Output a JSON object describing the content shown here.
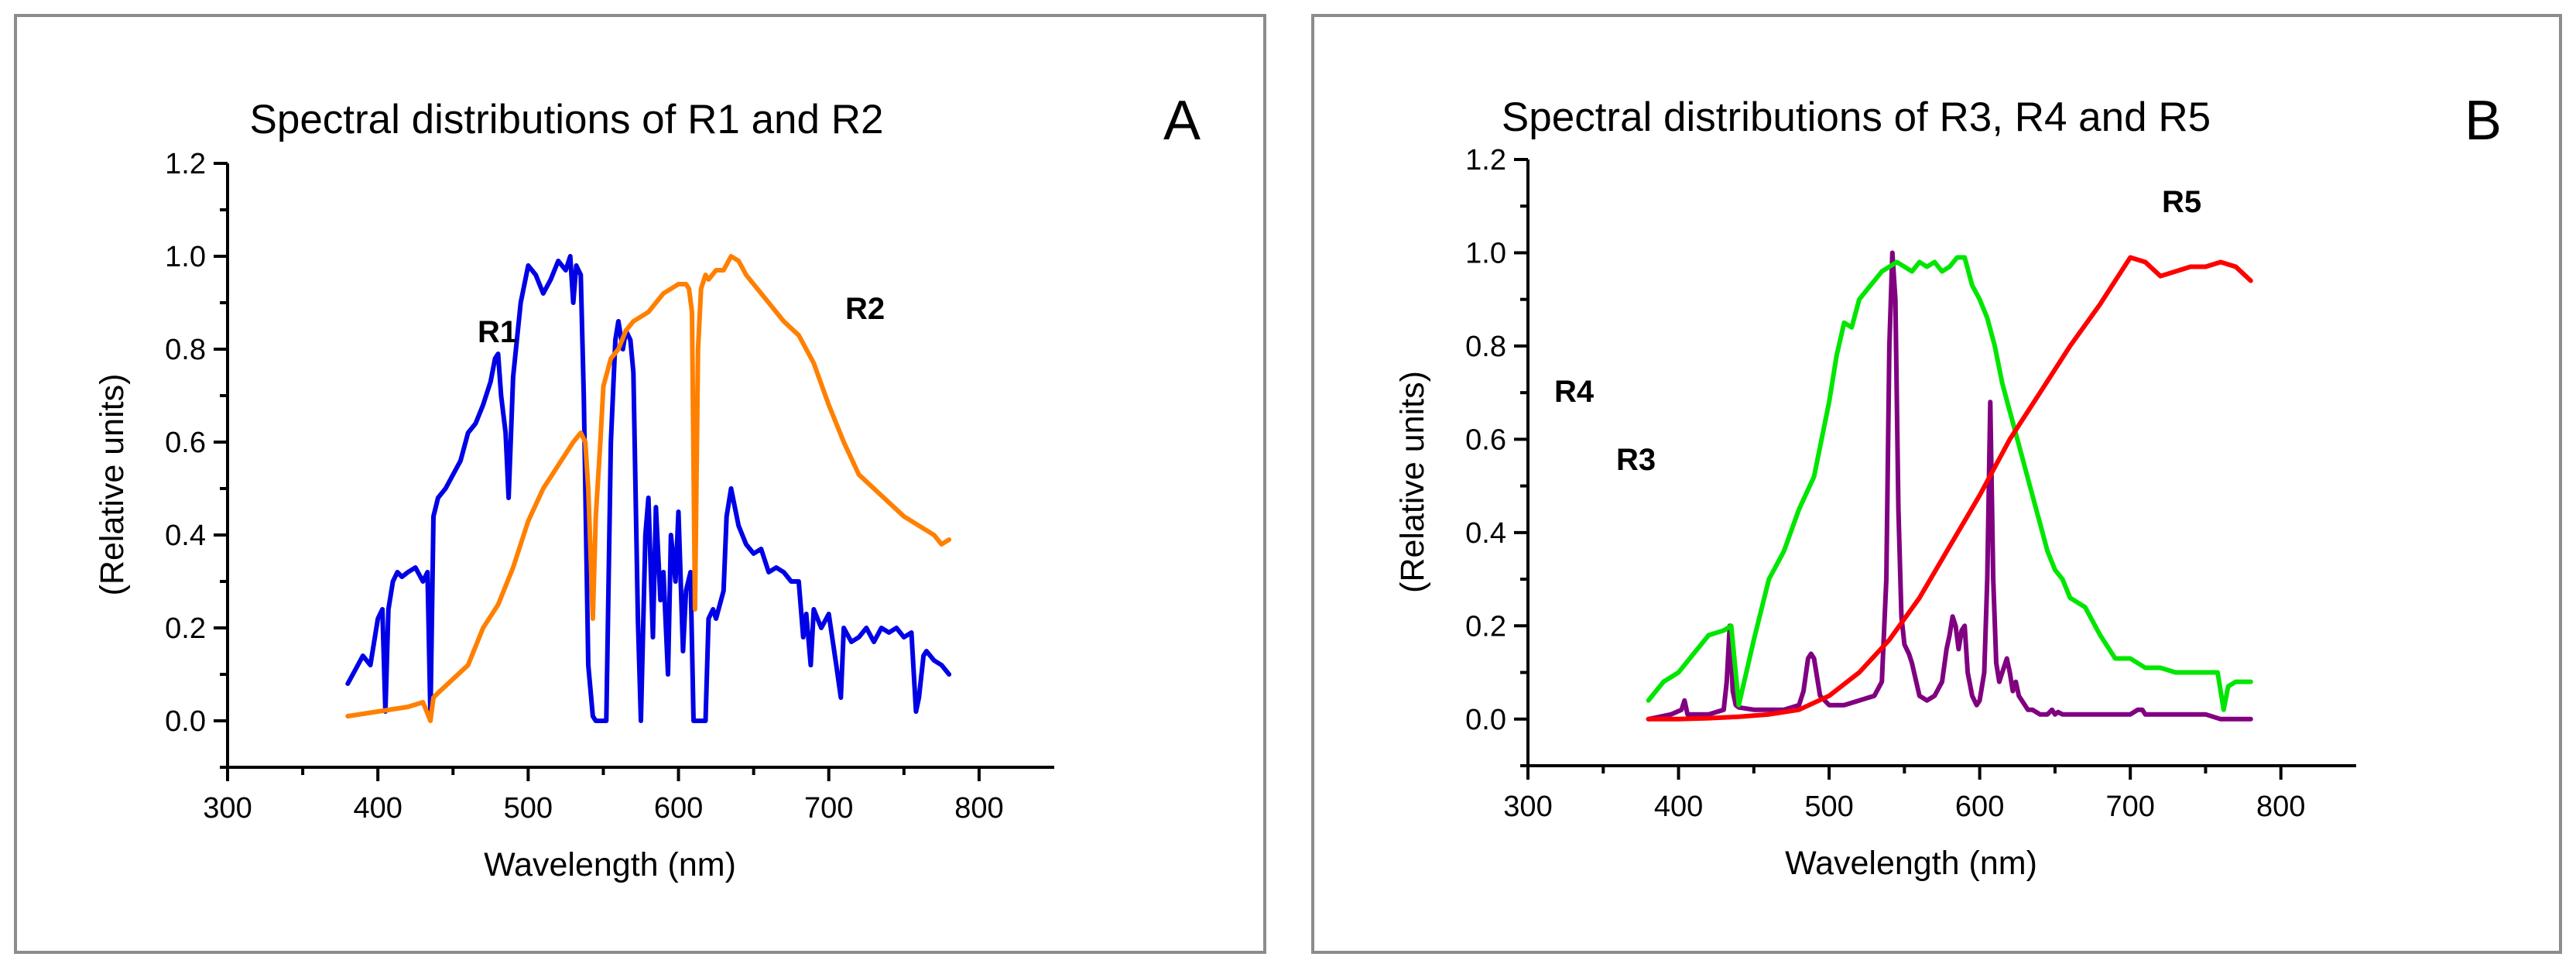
{
  "chart_data": [
    {
      "type": "line",
      "panel_letter": "A",
      "title": "Spectral distributions of R1 and R2",
      "xlabel": "Wavelength (nm)",
      "ylabel": "(Relative units)",
      "xlim": [
        300,
        850
      ],
      "ylim": [
        -0.1,
        1.2
      ],
      "xticks": [
        300,
        400,
        500,
        600,
        700,
        800
      ],
      "yticks": [
        0.0,
        0.2,
        0.4,
        0.6,
        0.8,
        1.0,
        1.2
      ],
      "grid": false,
      "series": [
        {
          "name": "R1",
          "color": "#0000e6",
          "x": [
            380,
            385,
            390,
            395,
            400,
            403,
            405,
            407,
            410,
            413,
            416,
            420,
            425,
            430,
            433,
            435,
            437,
            440,
            445,
            450,
            455,
            460,
            465,
            470,
            475,
            478,
            480,
            482,
            485,
            487,
            490,
            495,
            500,
            505,
            510,
            515,
            520,
            525,
            528,
            530,
            532,
            535,
            537,
            540,
            543,
            545,
            548,
            550,
            552,
            555,
            558,
            560,
            563,
            565,
            568,
            570,
            573,
            575,
            578,
            580,
            583,
            585,
            588,
            590,
            593,
            595,
            598,
            600,
            603,
            605,
            608,
            610,
            613,
            615,
            618,
            620,
            623,
            625,
            630,
            632,
            635,
            640,
            645,
            650,
            655,
            660,
            665,
            670,
            675,
            680,
            683,
            685,
            688,
            690,
            695,
            700,
            705,
            708,
            710,
            715,
            720,
            725,
            730,
            735,
            740,
            745,
            750,
            755,
            758,
            760,
            763,
            765,
            770,
            775,
            780
          ],
          "y": [
            0.08,
            0.11,
            0.14,
            0.12,
            0.22,
            0.24,
            0.02,
            0.24,
            0.3,
            0.32,
            0.31,
            0.32,
            0.33,
            0.3,
            0.32,
            0.01,
            0.44,
            0.48,
            0.5,
            0.53,
            0.56,
            0.62,
            0.64,
            0.68,
            0.73,
            0.78,
            0.79,
            0.7,
            0.62,
            0.48,
            0.74,
            0.9,
            0.98,
            0.96,
            0.92,
            0.95,
            0.99,
            0.97,
            1.0,
            0.9,
            0.98,
            0.96,
            0.7,
            0.12,
            0.01,
            0.0,
            0.0,
            0.0,
            0.0,
            0.6,
            0.82,
            0.86,
            0.8,
            0.84,
            0.82,
            0.75,
            0.22,
            0.0,
            0.4,
            0.48,
            0.18,
            0.46,
            0.26,
            0.32,
            0.1,
            0.4,
            0.3,
            0.45,
            0.15,
            0.28,
            0.32,
            0.0,
            0.0,
            0.0,
            0.0,
            0.22,
            0.24,
            0.22,
            0.28,
            0.44,
            0.5,
            0.42,
            0.38,
            0.36,
            0.37,
            0.32,
            0.33,
            0.32,
            0.3,
            0.3,
            0.18,
            0.23,
            0.12,
            0.24,
            0.2,
            0.23,
            0.12,
            0.05,
            0.2,
            0.17,
            0.18,
            0.2,
            0.17,
            0.2,
            0.19,
            0.2,
            0.18,
            0.19,
            0.02,
            0.05,
            0.14,
            0.15,
            0.13,
            0.12,
            0.1
          ]
        },
        {
          "name": "R2",
          "color": "#ff8000",
          "x": [
            380,
            390,
            400,
            410,
            420,
            430,
            435,
            437,
            440,
            450,
            460,
            470,
            480,
            490,
            500,
            510,
            520,
            530,
            535,
            538,
            540,
            543,
            545,
            548,
            550,
            555,
            560,
            565,
            570,
            575,
            580,
            585,
            590,
            595,
            600,
            605,
            607,
            609,
            611,
            613,
            615,
            618,
            620,
            625,
            630,
            635,
            640,
            645,
            650,
            660,
            670,
            680,
            690,
            700,
            710,
            720,
            730,
            740,
            750,
            760,
            770,
            775,
            780
          ],
          "y": [
            0.01,
            0.015,
            0.02,
            0.025,
            0.03,
            0.04,
            0.0,
            0.05,
            0.06,
            0.09,
            0.12,
            0.2,
            0.25,
            0.33,
            0.43,
            0.5,
            0.55,
            0.6,
            0.62,
            0.6,
            0.5,
            0.22,
            0.44,
            0.6,
            0.72,
            0.78,
            0.8,
            0.84,
            0.86,
            0.87,
            0.88,
            0.9,
            0.92,
            0.93,
            0.94,
            0.94,
            0.93,
            0.88,
            0.24,
            0.8,
            0.93,
            0.96,
            0.95,
            0.97,
            0.97,
            1.0,
            0.99,
            0.96,
            0.94,
            0.9,
            0.86,
            0.83,
            0.77,
            0.68,
            0.6,
            0.53,
            0.5,
            0.47,
            0.44,
            0.42,
            0.4,
            0.38,
            0.39
          ]
        }
      ],
      "annotations": [
        "R1",
        "R2"
      ]
    },
    {
      "type": "line",
      "panel_letter": "B",
      "title": "Spectral distributions of R3, R4 and R5",
      "xlabel": "Wavelength (nm)",
      "ylabel": "(Relative units)",
      "xlim": [
        300,
        850
      ],
      "ylim": [
        -0.1,
        1.2
      ],
      "xticks": [
        300,
        400,
        500,
        600,
        700,
        800
      ],
      "yticks": [
        0.0,
        0.2,
        0.4,
        0.6,
        0.8,
        1.0,
        1.2
      ],
      "grid": false,
      "series": [
        {
          "name": "R3",
          "color": "#800080",
          "x": [
            380,
            395,
            402,
            404,
            406,
            410,
            420,
            430,
            432,
            434,
            436,
            438,
            440,
            450,
            460,
            470,
            480,
            483,
            486,
            488,
            490,
            492,
            494,
            497,
            500,
            510,
            520,
            530,
            535,
            538,
            540,
            542,
            544,
            546,
            548,
            550,
            553,
            555,
            560,
            565,
            570,
            575,
            578,
            580,
            582,
            584,
            586,
            588,
            590,
            592,
            595,
            598,
            600,
            603,
            605,
            607,
            609,
            611,
            613,
            615,
            618,
            620,
            622,
            624,
            626,
            628,
            630,
            632,
            635,
            640,
            645,
            648,
            650,
            652,
            655,
            660,
            670,
            680,
            690,
            700,
            705,
            708,
            710,
            713,
            715,
            720,
            730,
            740,
            750,
            760,
            770,
            780
          ],
          "y": [
            0.0,
            0.01,
            0.02,
            0.04,
            0.01,
            0.01,
            0.01,
            0.02,
            0.08,
            0.2,
            0.06,
            0.03,
            0.025,
            0.02,
            0.02,
            0.02,
            0.03,
            0.06,
            0.13,
            0.14,
            0.13,
            0.09,
            0.05,
            0.04,
            0.03,
            0.03,
            0.04,
            0.05,
            0.08,
            0.3,
            0.8,
            1.0,
            0.9,
            0.45,
            0.22,
            0.16,
            0.14,
            0.12,
            0.05,
            0.04,
            0.05,
            0.08,
            0.15,
            0.18,
            0.22,
            0.2,
            0.15,
            0.19,
            0.2,
            0.1,
            0.05,
            0.03,
            0.04,
            0.1,
            0.3,
            0.68,
            0.3,
            0.12,
            0.08,
            0.1,
            0.13,
            0.1,
            0.06,
            0.08,
            0.05,
            0.04,
            0.03,
            0.02,
            0.02,
            0.01,
            0.01,
            0.02,
            0.01,
            0.015,
            0.01,
            0.01,
            0.01,
            0.01,
            0.01,
            0.01,
            0.02,
            0.02,
            0.01,
            0.01,
            0.01,
            0.01,
            0.01,
            0.01,
            0.01,
            0.0,
            0.0,
            0.0
          ]
        },
        {
          "name": "R4",
          "color": "#00e600",
          "x": [
            380,
            390,
            400,
            410,
            420,
            430,
            435,
            440,
            450,
            460,
            470,
            480,
            490,
            500,
            505,
            510,
            515,
            520,
            525,
            530,
            535,
            540,
            545,
            550,
            555,
            560,
            565,
            570,
            575,
            580,
            585,
            590,
            595,
            600,
            605,
            610,
            615,
            620,
            625,
            630,
            635,
            640,
            645,
            650,
            655,
            660,
            670,
            680,
            690,
            700,
            710,
            720,
            730,
            740,
            750,
            758,
            762,
            765,
            770,
            780
          ],
          "y": [
            0.04,
            0.08,
            0.1,
            0.14,
            0.18,
            0.19,
            0.2,
            0.03,
            0.17,
            0.3,
            0.36,
            0.45,
            0.52,
            0.68,
            0.78,
            0.85,
            0.84,
            0.9,
            0.92,
            0.94,
            0.96,
            0.97,
            0.98,
            0.97,
            0.96,
            0.98,
            0.97,
            0.98,
            0.96,
            0.97,
            0.99,
            0.99,
            0.93,
            0.9,
            0.86,
            0.8,
            0.72,
            0.66,
            0.6,
            0.54,
            0.48,
            0.42,
            0.36,
            0.32,
            0.3,
            0.26,
            0.24,
            0.18,
            0.13,
            0.13,
            0.11,
            0.11,
            0.1,
            0.1,
            0.1,
            0.1,
            0.02,
            0.07,
            0.08,
            0.08
          ]
        },
        {
          "name": "R5",
          "color": "#ff0000",
          "x": [
            380,
            400,
            420,
            440,
            460,
            480,
            500,
            520,
            540,
            560,
            580,
            600,
            620,
            640,
            660,
            680,
            690,
            700,
            710,
            720,
            730,
            740,
            750,
            760,
            770,
            780
          ],
          "y": [
            0.0,
            0.0,
            0.002,
            0.005,
            0.01,
            0.02,
            0.05,
            0.1,
            0.17,
            0.26,
            0.37,
            0.48,
            0.6,
            0.7,
            0.8,
            0.89,
            0.94,
            0.99,
            0.98,
            0.95,
            0.96,
            0.97,
            0.97,
            0.98,
            0.97,
            0.94
          ]
        }
      ],
      "annotations": [
        "R3",
        "R4",
        "R5"
      ]
    }
  ]
}
